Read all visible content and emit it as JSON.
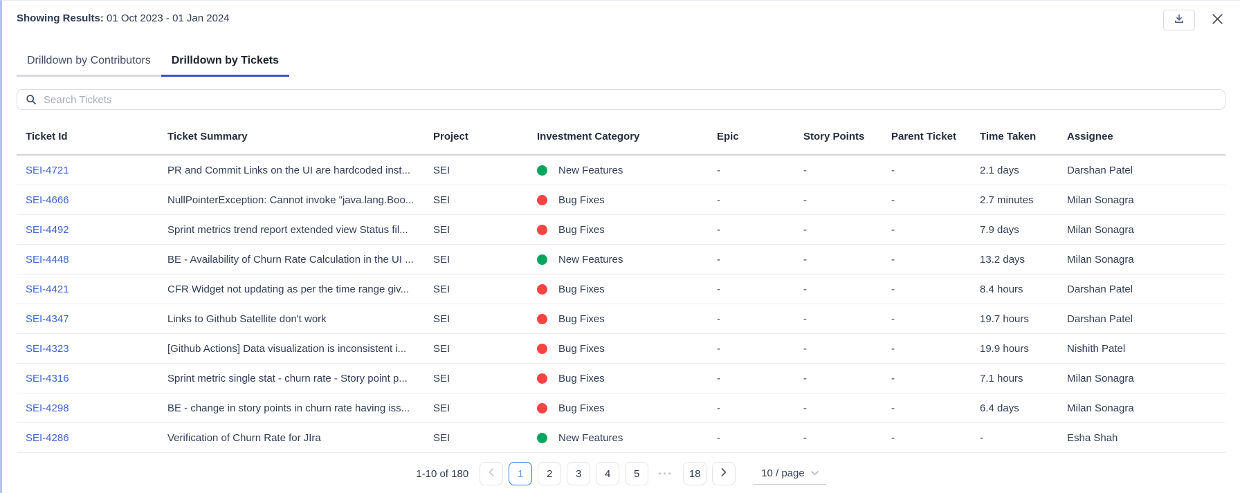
{
  "header": {
    "label": "Showing Results:",
    "range": "01 Oct 2023 - 01 Jan 2024"
  },
  "tabs": [
    {
      "label": "Drilldown by Contributors",
      "active": false
    },
    {
      "label": "Drilldown by Tickets",
      "active": true
    }
  ],
  "search": {
    "placeholder": "Search Tickets"
  },
  "colors": {
    "green": "#00a65d",
    "red": "#fb4343",
    "ink_bar": "#3d4fd0",
    "link_blue": "#3b63d8",
    "active_page_border": "#2e7eea"
  },
  "table": {
    "columns": [
      "Ticket Id",
      "Ticket Summary",
      "Project",
      "Investment Category",
      "Epic",
      "Story Points",
      "Parent Ticket",
      "Time Taken",
      "Assignee"
    ],
    "rows": [
      {
        "id": "SEI-4721",
        "summary": "PR and Commit Links on the UI are hardcoded inst...",
        "project": "SEI",
        "category": "New Features",
        "category_color": "green",
        "epic": "-",
        "story_points": "-",
        "parent_ticket": "-",
        "time_taken": "2.1 days",
        "assignee": "Darshan Patel"
      },
      {
        "id": "SEI-4666",
        "summary": "NullPointerException: Cannot invoke \"java.lang.Boo...",
        "project": "SEI",
        "category": "Bug Fixes",
        "category_color": "red",
        "epic": "-",
        "story_points": "-",
        "parent_ticket": "-",
        "time_taken": "2.7 minutes",
        "assignee": "Milan Sonagra"
      },
      {
        "id": "SEI-4492",
        "summary": "Sprint metrics trend report extended view Status fil...",
        "project": "SEI",
        "category": "Bug Fixes",
        "category_color": "red",
        "epic": "-",
        "story_points": "-",
        "parent_ticket": "-",
        "time_taken": "7.9 days",
        "assignee": "Milan Sonagra"
      },
      {
        "id": "SEI-4448",
        "summary": "BE - Availability of Churn Rate Calculation in the UI ...",
        "project": "SEI",
        "category": "New Features",
        "category_color": "green",
        "epic": "-",
        "story_points": "-",
        "parent_ticket": "-",
        "time_taken": "13.2 days",
        "assignee": "Milan Sonagra"
      },
      {
        "id": "SEI-4421",
        "summary": "CFR Widget not updating as per the time range giv...",
        "project": "SEI",
        "category": "Bug Fixes",
        "category_color": "red",
        "epic": "-",
        "story_points": "-",
        "parent_ticket": "-",
        "time_taken": "8.4 hours",
        "assignee": "Darshan Patel"
      },
      {
        "id": "SEI-4347",
        "summary": "Links to Github Satellite don't work",
        "project": "SEI",
        "category": "Bug Fixes",
        "category_color": "red",
        "epic": "-",
        "story_points": "-",
        "parent_ticket": "-",
        "time_taken": "19.7 hours",
        "assignee": "Darshan Patel"
      },
      {
        "id": "SEI-4323",
        "summary": "[Github Actions] Data visualization is inconsistent i...",
        "project": "SEI",
        "category": "Bug Fixes",
        "category_color": "red",
        "epic": "-",
        "story_points": "-",
        "parent_ticket": "-",
        "time_taken": "19.9 hours",
        "assignee": "Nishith Patel"
      },
      {
        "id": "SEI-4316",
        "summary": "Sprint metric single stat - churn rate - Story point p...",
        "project": "SEI",
        "category": "Bug Fixes",
        "category_color": "red",
        "epic": "-",
        "story_points": "-",
        "parent_ticket": "-",
        "time_taken": "7.1 hours",
        "assignee": "Milan Sonagra"
      },
      {
        "id": "SEI-4298",
        "summary": "BE - change in story points in churn rate having iss...",
        "project": "SEI",
        "category": "Bug Fixes",
        "category_color": "red",
        "epic": "-",
        "story_points": "-",
        "parent_ticket": "-",
        "time_taken": "6.4 days",
        "assignee": "Milan Sonagra"
      },
      {
        "id": "SEI-4286",
        "summary": "Verification of Churn Rate for JIra",
        "project": "SEI",
        "category": "New Features",
        "category_color": "green",
        "epic": "-",
        "story_points": "-",
        "parent_ticket": "-",
        "time_taken": "-",
        "assignee": "Esha Shah"
      }
    ]
  },
  "pagination": {
    "summary": "1-10 of 180",
    "pages": [
      {
        "label": "1",
        "active": true
      },
      {
        "label": "2"
      },
      {
        "label": "3"
      },
      {
        "label": "4"
      },
      {
        "label": "5"
      },
      {
        "label": "•••",
        "ellipsis": true
      },
      {
        "label": "18"
      }
    ],
    "page_size": "10 / page"
  }
}
